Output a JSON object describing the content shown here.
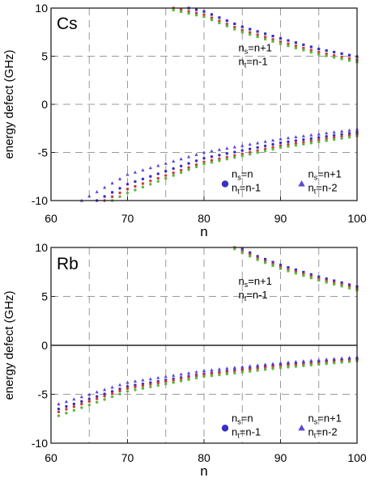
{
  "chart_data": [
    {
      "type": "scatter",
      "title": "Cs",
      "xlabel": "n",
      "ylabel": "energy defect (GHz)",
      "xlim": [
        60,
        100
      ],
      "ylim": [
        -10,
        10
      ],
      "x_ticks": [
        "60",
        "70",
        "80",
        "90",
        "100"
      ],
      "y_ticks": [
        "10",
        "5",
        "0",
        "-5",
        "-10"
      ],
      "grid": "dashed vertical every 5 and horizontal every 5",
      "zero_line": false,
      "annotations": {
        "upper": {
          "a1": "n",
          "a1s": "s",
          "a2": "=n+1",
          "b1": "n",
          "b1s": "t",
          "b2": "=n-1"
        },
        "legend_circle": {
          "a1": "n",
          "a1s": "s",
          "a2": "=n",
          "b1": "n",
          "b1s": "t",
          "b2": "=n-1"
        },
        "legend_triangle": {
          "a1": "n",
          "a1s": "s",
          "a2": "=n+1",
          "b1": "n",
          "b1s": "t",
          "b2": "=n-2"
        }
      },
      "upper_branch": {
        "x_range": [
          76,
          100
        ],
        "values_at": {
          "76": 10.0,
          "80": 9.3,
          "85": 7.7,
          "90": 6.5,
          "95": 5.4,
          "100": 4.6
        },
        "series_offsets": {
          "blue": 0.35,
          "red": 0.0,
          "green": -0.2
        }
      },
      "lower_branch": {
        "x_range": [
          61,
          100
        ],
        "curves": [
          {
            "marker": "triangle",
            "color": "#5a48d6",
            "values_at": {
              "64": -10.0,
              "70": -7.3,
              "80": -5.0,
              "90": -3.6,
              "100": -2.6
            }
          },
          {
            "marker": "circle",
            "color": "#3a2fc0",
            "values_at": {
              "66": -10.0,
              "70": -8.3,
              "80": -5.6,
              "90": -4.0,
              "100": -2.9
            }
          },
          {
            "marker": "circle",
            "color": "#d43a3a",
            "values_at": {
              "67": -10.0,
              "70": -8.8,
              "80": -6.0,
              "90": -4.3,
              "100": -3.1
            }
          },
          {
            "marker": "circle",
            "color": "#5cb83a",
            "values_at": {
              "68": -10.0,
              "70": -9.2,
              "80": -6.2,
              "90": -4.5,
              "100": -3.3
            }
          }
        ]
      },
      "colors": {
        "blue": "#3a2fc0",
        "purple": "#5a48d6",
        "red": "#d43a3a",
        "green": "#5cb83a"
      }
    },
    {
      "type": "scatter",
      "title": "Rb",
      "xlabel": "n",
      "ylabel": "energy defect (GHz)",
      "xlim": [
        60,
        100
      ],
      "ylim": [
        -10,
        10
      ],
      "x_ticks": [
        "60",
        "70",
        "80",
        "90",
        "100"
      ],
      "y_ticks": [
        "10",
        "5",
        "0",
        "-5",
        "-10"
      ],
      "grid": "dashed vertical every 5 and horizontal every 5",
      "zero_line": true,
      "annotations": {
        "upper": {
          "a1": "n",
          "a1s": "s",
          "a2": "=n+1",
          "b1": "n",
          "b1s": "t",
          "b2": "=n-1"
        },
        "legend_circle": {
          "a1": "n",
          "a1s": "s",
          "a2": "=n",
          "b1": "n",
          "b1s": "t",
          "b2": "=n-1"
        },
        "legend_triangle": {
          "a1": "n",
          "a1s": "s",
          "a2": "=n+1",
          "b1": "n",
          "b1s": "t",
          "b2": "=n-2"
        }
      },
      "upper_branch": {
        "x_range": [
          84,
          100
        ],
        "values_at": {
          "84": 10.0,
          "87": 8.9,
          "90": 8.0,
          "95": 6.8,
          "100": 5.8
        },
        "series_offsets": {
          "blue": 0.2,
          "red": 0.0,
          "green": -0.15
        }
      },
      "lower_branch": {
        "x_range": [
          61,
          100
        ],
        "curves": [
          {
            "marker": "triangle",
            "color": "#5a48d6",
            "values_at": {
              "61": -6.0,
              "70": -3.8,
              "80": -2.6,
              "90": -1.8,
              "100": -1.2
            }
          },
          {
            "marker": "circle",
            "color": "#3a2fc0",
            "values_at": {
              "61": -6.5,
              "70": -4.2,
              "80": -2.9,
              "90": -2.0,
              "100": -1.4
            }
          },
          {
            "marker": "circle",
            "color": "#d43a3a",
            "values_at": {
              "61": -6.8,
              "70": -4.4,
              "80": -3.0,
              "90": -2.1,
              "100": -1.5
            }
          },
          {
            "marker": "circle",
            "color": "#5cb83a",
            "values_at": {
              "61": -7.2,
              "70": -4.7,
              "80": -3.2,
              "90": -2.3,
              "100": -1.6
            }
          }
        ]
      },
      "colors": {
        "blue": "#3a2fc0",
        "purple": "#5a48d6",
        "red": "#d43a3a",
        "green": "#5cb83a"
      }
    }
  ]
}
